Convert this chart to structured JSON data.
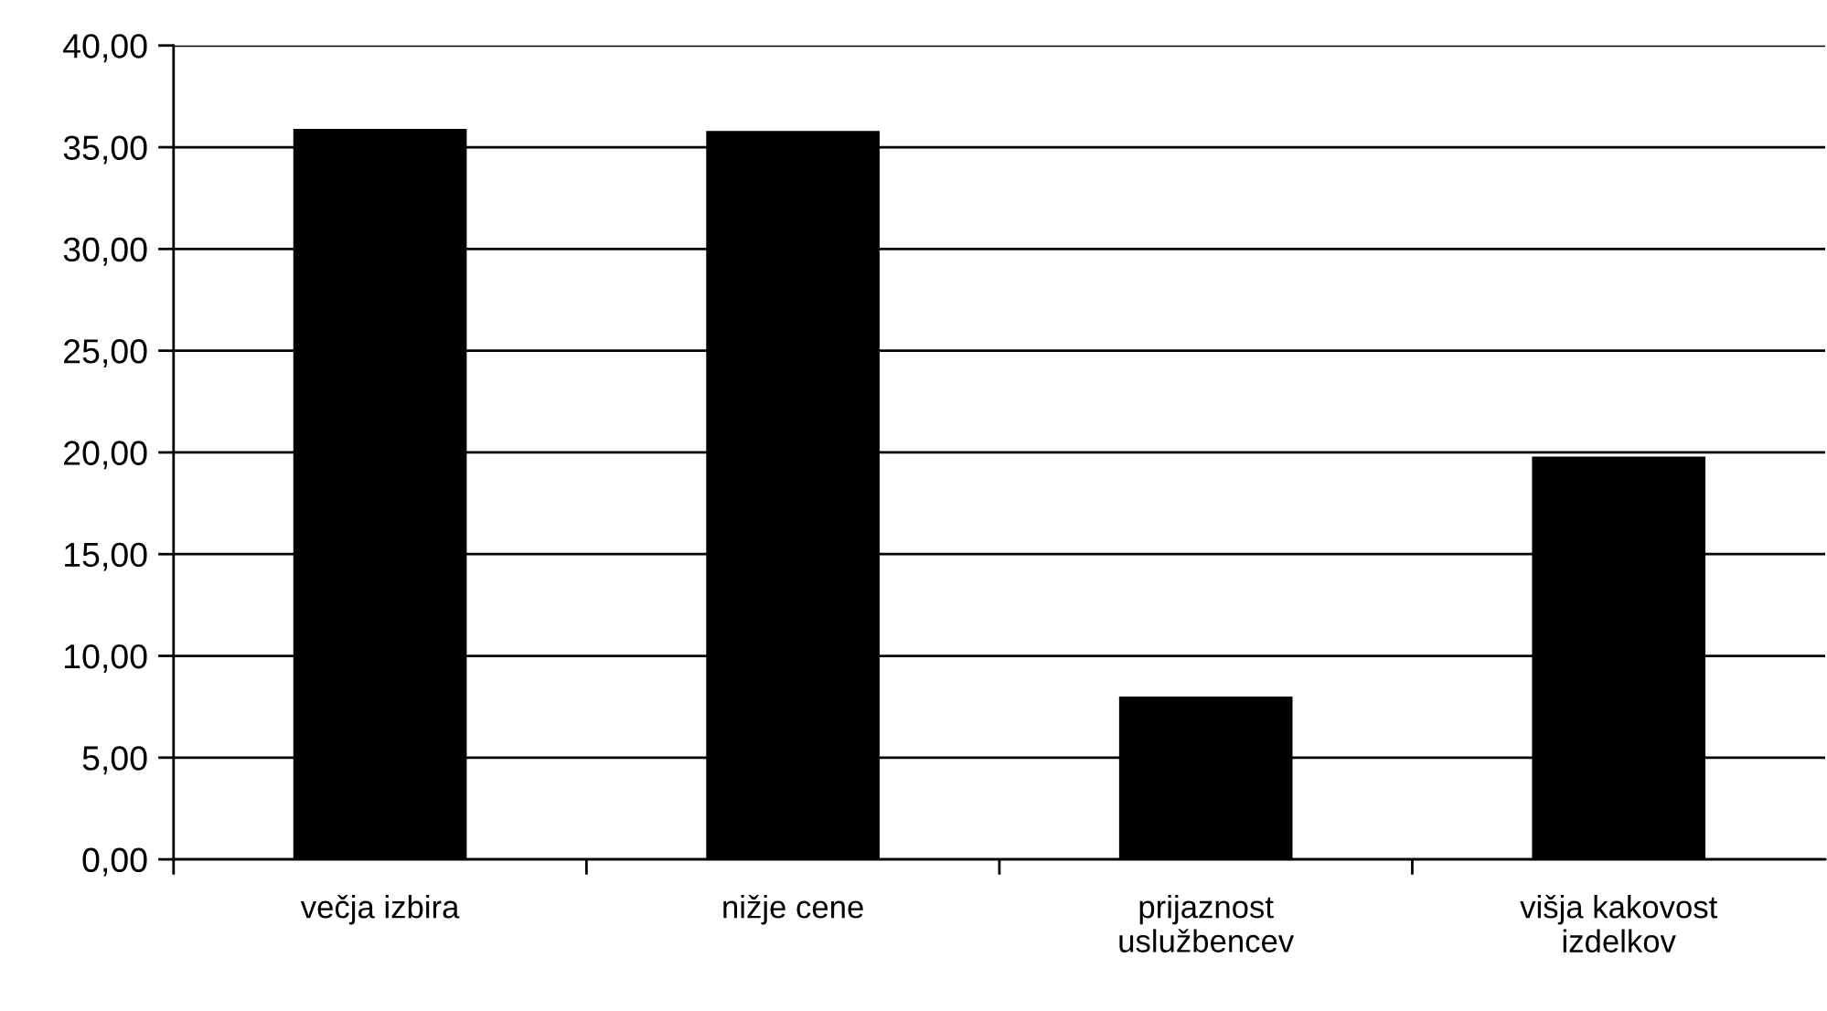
{
  "chart_data": {
    "type": "bar",
    "categories": [
      "večja izbira",
      "nižje cene",
      "prijaznost\nuslužbencev",
      "višja kakovost\nizdelkov"
    ],
    "values": [
      35.9,
      35.8,
      8.0,
      19.8
    ],
    "color": "#000000",
    "ylim": [
      0,
      40
    ],
    "yticks": [
      {
        "value": 0,
        "label": "0,00"
      },
      {
        "value": 5,
        "label": "5,00"
      },
      {
        "value": 10,
        "label": "10,00"
      },
      {
        "value": 15,
        "label": "15,00"
      },
      {
        "value": 20,
        "label": "20,00"
      },
      {
        "value": 25,
        "label": "25,00"
      },
      {
        "value": 30,
        "label": "30,00"
      },
      {
        "value": 35,
        "label": "35,00"
      },
      {
        "value": 40,
        "label": "40,00"
      }
    ],
    "grid": "y",
    "legend": false
  }
}
